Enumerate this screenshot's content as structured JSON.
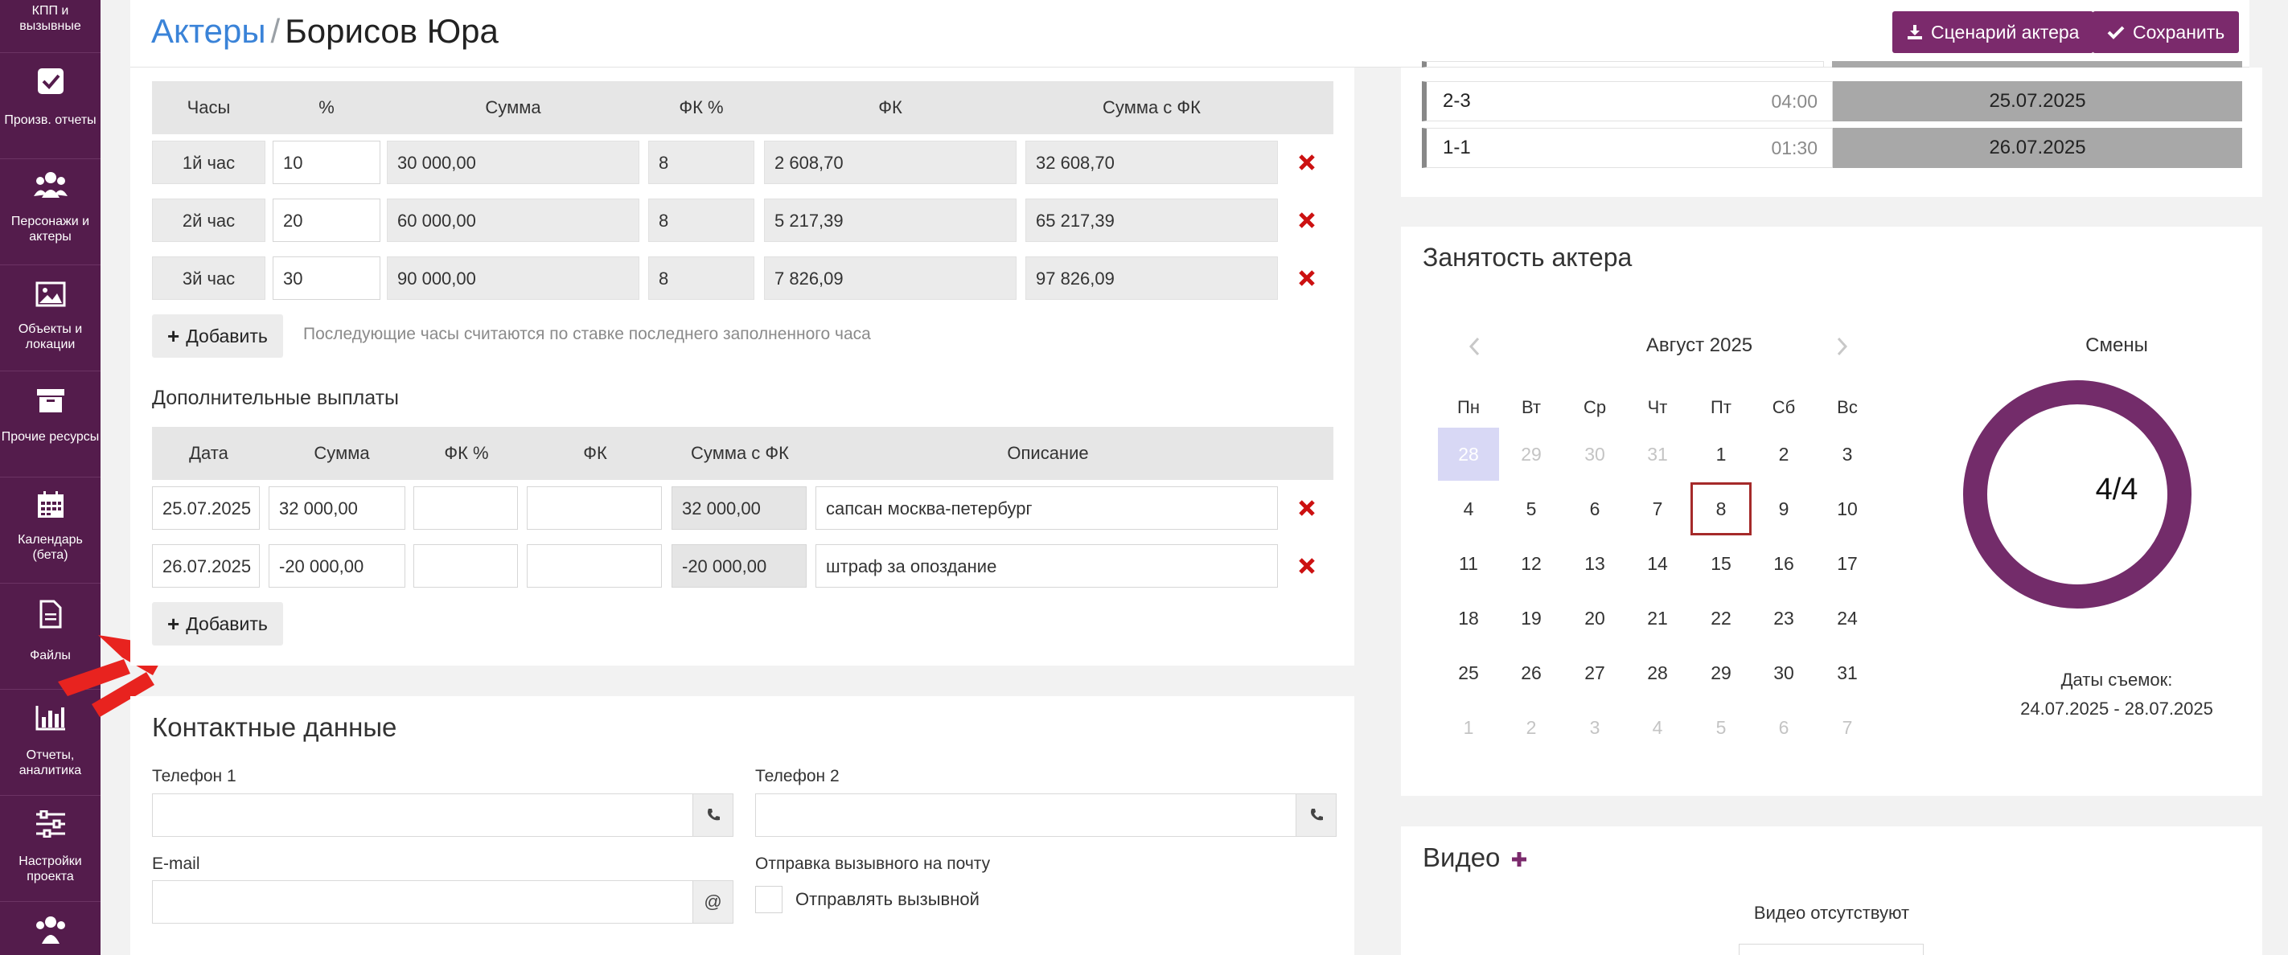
{
  "colors": {
    "sidebar": "#541c4c",
    "accent": "#7b2a6c",
    "link": "#3a83d8",
    "delete": "#cc1111"
  },
  "sidebar": {
    "items": [
      {
        "icon": "phone-icon",
        "label": "КПП и вызывные"
      },
      {
        "icon": "checkbox-icon",
        "label": "Произв. отчеты"
      },
      {
        "icon": "users-icon",
        "label": "Персонажи и актеры"
      },
      {
        "icon": "image-icon",
        "label": "Объекты и локации"
      },
      {
        "icon": "archive-icon",
        "label": "Прочие ресурсы"
      },
      {
        "icon": "calendar-icon",
        "label": "Календарь (бета)"
      },
      {
        "icon": "file-icon",
        "label": "Файлы"
      },
      {
        "icon": "bar-chart-icon",
        "label": "Отчеты, аналитика"
      },
      {
        "icon": "sliders-icon",
        "label": "Настройки проекта"
      },
      {
        "icon": "team-icon",
        "label": ""
      }
    ]
  },
  "header": {
    "breadcrumb_link": "Актеры",
    "separator": "/",
    "current": "Борисов Юра",
    "scenario_button": "Сценарий актера",
    "save_button": "Сохранить"
  },
  "hours_table": {
    "columns": [
      "Часы",
      "%",
      "Сумма",
      "ФК %",
      "ФК",
      "Сумма с ФК"
    ],
    "rows": [
      {
        "hour": "1й час",
        "percent": "10",
        "sum": "30 000,00",
        "fk_percent": "8",
        "fk": "2 608,70",
        "total": "32 608,70"
      },
      {
        "hour": "2й час",
        "percent": "20",
        "sum": "60 000,00",
        "fk_percent": "8",
        "fk": "5 217,39",
        "total": "65 217,39"
      },
      {
        "hour": "3й час",
        "percent": "30",
        "sum": "90 000,00",
        "fk_percent": "8",
        "fk": "7 826,09",
        "total": "97 826,09"
      }
    ],
    "add_label": "Добавить",
    "hint": "Последующие часы считаются по ставке последнего заполненного часа"
  },
  "extra_payments": {
    "title": "Дополнительные выплаты",
    "columns": [
      "Дата",
      "Сумма",
      "ФК %",
      "ФК",
      "Сумма с ФК",
      "Описание"
    ],
    "rows": [
      {
        "date": "25.07.2025",
        "sum": "32 000,00",
        "fk_percent": "",
        "fk": "",
        "total": "32 000,00",
        "description": "сапсан москва-петербург"
      },
      {
        "date": "26.07.2025",
        "sum": "-20 000,00",
        "fk_percent": "",
        "fk": "",
        "total": "-20 000,00",
        "description": "штраф за опоздание"
      }
    ],
    "add_label": "Добавить"
  },
  "contacts": {
    "title": "Контактные данные",
    "phone1_label": "Телефон 1",
    "phone2_label": "Телефон 2",
    "email_label": "E-mail",
    "email_addon": "@",
    "send_label": "Отправка вызывного на почту",
    "send_checkbox_label": "Отправлять вызывной",
    "phone1": "",
    "phone2": "",
    "email": ""
  },
  "shifts_list": [
    {
      "code": "2-3",
      "time": "04:00",
      "date": "25.07.2025"
    },
    {
      "code": "1-1",
      "time": "01:30",
      "date": "26.07.2025"
    }
  ],
  "availability": {
    "title": "Занятость актера",
    "month": "Август 2025",
    "weekdays": [
      "Пн",
      "Вт",
      "Ср",
      "Чт",
      "Пт",
      "Сб",
      "Вс"
    ],
    "weeks": [
      [
        "28",
        "29",
        "30",
        "31",
        "1",
        "2",
        "3"
      ],
      [
        "4",
        "5",
        "6",
        "7",
        "8",
        "9",
        "10"
      ],
      [
        "11",
        "12",
        "13",
        "14",
        "15",
        "16",
        "17"
      ],
      [
        "18",
        "19",
        "20",
        "21",
        "22",
        "23",
        "24"
      ],
      [
        "25",
        "26",
        "27",
        "28",
        "29",
        "30",
        "31"
      ],
      [
        "1",
        "2",
        "3",
        "4",
        "5",
        "6",
        "7"
      ]
    ],
    "shifts_label": "Смены",
    "shifts_value": "4/4",
    "shifts_fraction": 1.0,
    "dates_label": "Даты съемок:",
    "dates_range": "24.07.2025 - 28.07.2025"
  },
  "video": {
    "title": "Видео",
    "add_icon": "plus-icon",
    "empty_text": "Видео отсутствуют"
  }
}
